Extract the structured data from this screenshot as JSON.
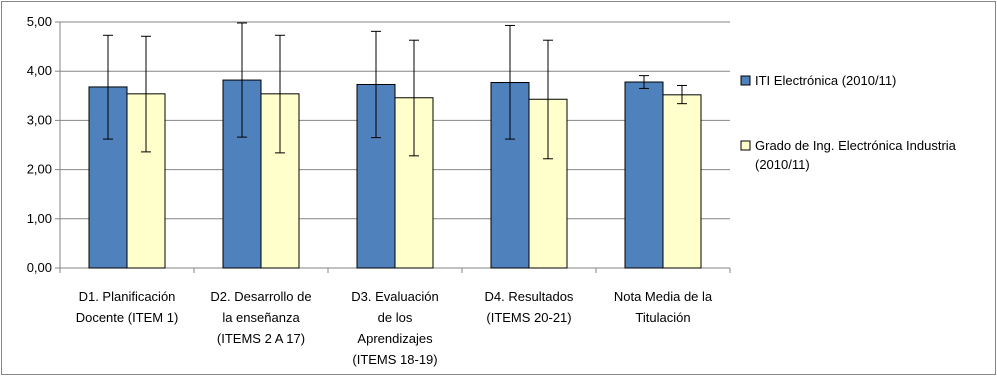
{
  "chart_data": {
    "type": "bar",
    "title": "",
    "xlabel": "",
    "ylabel": "",
    "ylim": [
      0,
      5
    ],
    "yticks": [
      "0,00",
      "1,00",
      "2,00",
      "3,00",
      "4,00",
      "5,00"
    ],
    "grid": true,
    "legend_position": "right",
    "categories": [
      [
        "D1. Planificación",
        "Docente (ITEM 1)"
      ],
      [
        "D2. Desarrollo de",
        "la enseñanza",
        "(ITEMS 2 A 17)"
      ],
      [
        "D3. Evaluación",
        "de los",
        "Aprendizajes",
        "(ITEMS 18-19)"
      ],
      [
        "D4. Resultados",
        "(ITEMS 20-21)"
      ],
      [
        "Nota Media de la",
        "Titulación"
      ]
    ],
    "series": [
      {
        "name": [
          "ITI Electrónica (2010/11)"
        ],
        "color": "#4F81BD",
        "values": [
          3.68,
          3.82,
          3.73,
          3.77,
          3.78
        ],
        "err_low": [
          2.62,
          2.66,
          2.65,
          2.62,
          3.65
        ],
        "err_high": [
          4.73,
          4.98,
          4.81,
          4.93,
          3.91
        ]
      },
      {
        "name": [
          "Grado de Ing. Electrónica Industria",
          "(2010/11)"
        ],
        "color": "#FFFFCC",
        "values": [
          3.54,
          3.54,
          3.46,
          3.43,
          3.52
        ],
        "err_low": [
          2.36,
          2.34,
          2.28,
          2.22,
          3.34
        ],
        "err_high": [
          4.71,
          4.73,
          4.63,
          4.63,
          3.71
        ]
      }
    ]
  }
}
